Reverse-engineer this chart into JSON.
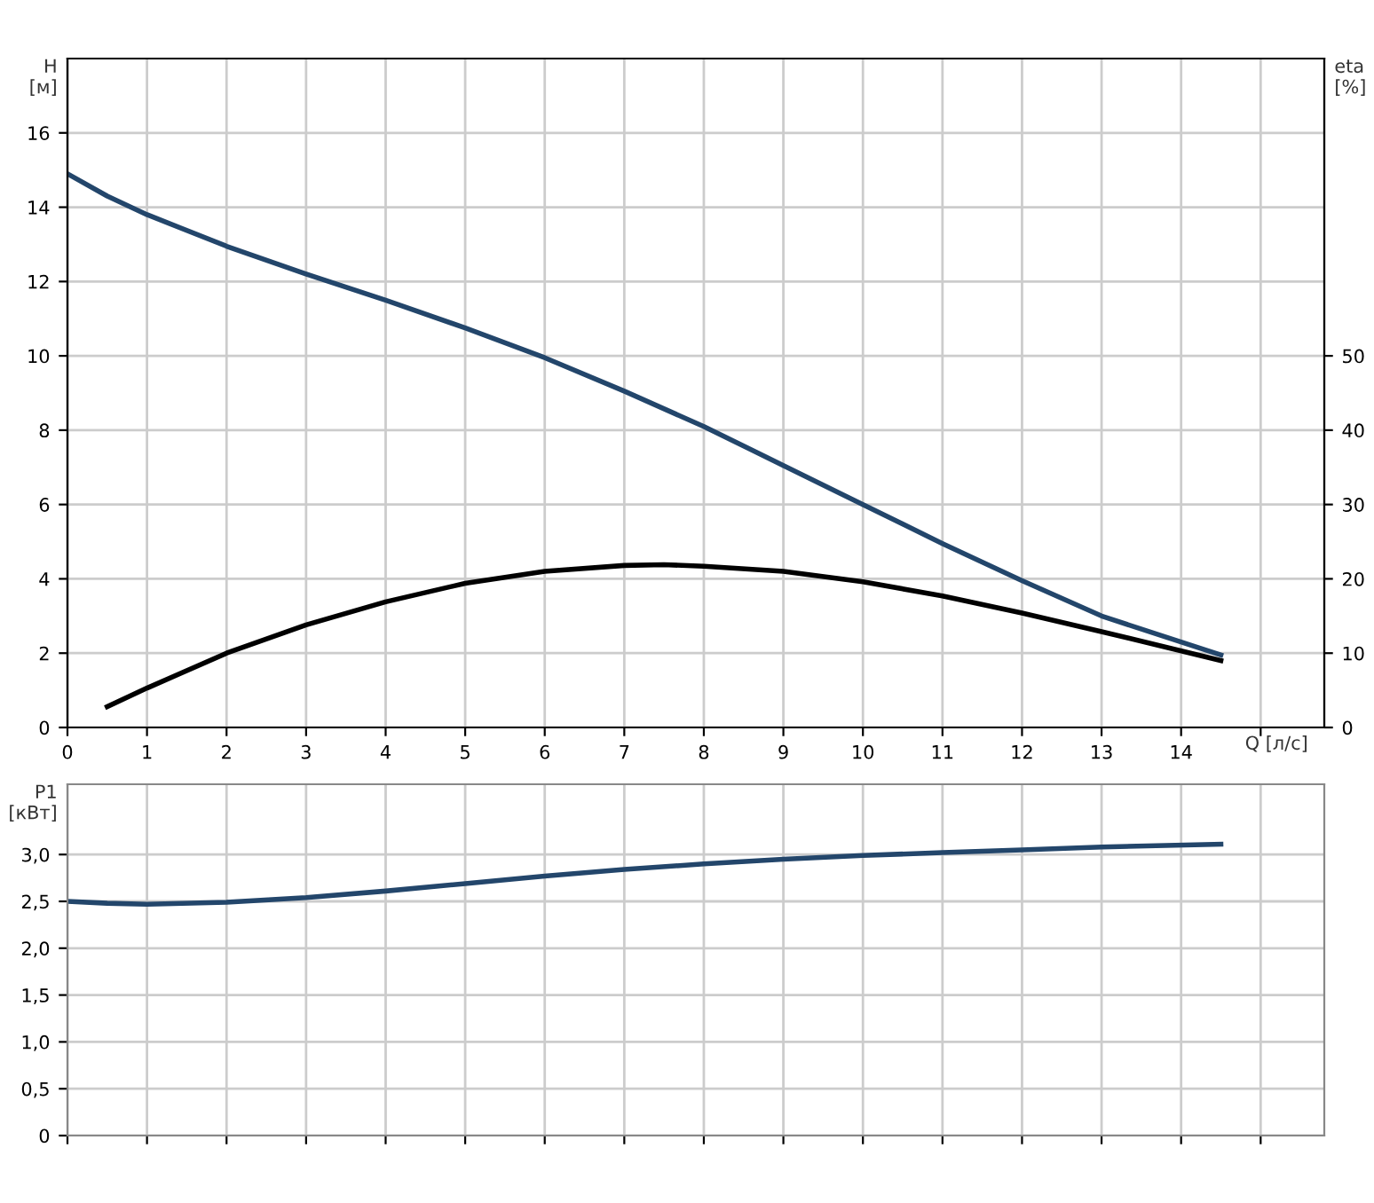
{
  "chart_data": [
    {
      "type": "line",
      "xlabel": "Q [л/с]",
      "ylabel": "H\n[м]",
      "y2label": "eta\n[%]",
      "xlim": [
        0,
        15.8
      ],
      "xticks": [
        0,
        1,
        2,
        3,
        4,
        5,
        6,
        7,
        8,
        9,
        10,
        11,
        12,
        13,
        14,
        {
          "value": 15,
          "label": null
        }
      ],
      "ylim": [
        0,
        18
      ],
      "yticks": [
        0,
        2,
        4,
        6,
        8,
        10,
        12,
        14,
        16
      ],
      "y2lim": [
        0,
        90
      ],
      "y2ticks": [
        0,
        10,
        20,
        30,
        40,
        50
      ],
      "grid": true,
      "marker": "none",
      "line_style": "solid",
      "series": [
        {
          "color": "#23466b",
          "x": [
            0,
            0.5,
            1,
            2,
            3,
            4,
            5,
            6,
            7,
            8,
            9,
            10,
            11,
            12,
            13,
            14.5
          ],
          "values": [
            14.9,
            14.3,
            13.8,
            12.95,
            12.2,
            11.5,
            10.75,
            9.95,
            9.05,
            8.1,
            7.05,
            6.0,
            4.95,
            3.95,
            3.0,
            1.95
          ]
        },
        {
          "color": "#000000",
          "axis": "y2",
          "x": [
            0.5,
            1,
            2,
            3,
            4,
            5,
            6,
            7,
            7.5,
            8,
            9,
            10,
            11,
            12,
            13,
            14.5
          ],
          "values": [
            2.8,
            5.3,
            10,
            13.8,
            16.9,
            19.4,
            21,
            21.8,
            21.9,
            21.7,
            21,
            19.6,
            17.7,
            15.4,
            12.9,
            9.0
          ]
        }
      ]
    },
    {
      "type": "line",
      "ylabel": "P1\n[кВт]",
      "tick_labels": "y",
      "xlim": [
        0,
        15.8
      ],
      "xticks": [
        0,
        1,
        2,
        3,
        4,
        5,
        6,
        7,
        8,
        9,
        10,
        11,
        12,
        13,
        14,
        15
      ],
      "ylim": [
        0,
        3.75
      ],
      "yticks": [
        {
          "value": 0,
          "label": "0"
        },
        {
          "value": 0.5,
          "label": "0,5"
        },
        {
          "value": 1.0,
          "label": "1,0"
        },
        {
          "value": 1.5,
          "label": "1,5"
        },
        {
          "value": 2.0,
          "label": "2,0"
        },
        {
          "value": 2.5,
          "label": "2,5"
        },
        {
          "value": 3.0,
          "label": "3,0"
        }
      ],
      "grid": true,
      "marker": "none",
      "line_style": "solid",
      "series": [
        {
          "color": "#23466b",
          "x": [
            0,
            0.5,
            1,
            2,
            3,
            4,
            5,
            6,
            7,
            8,
            9,
            10,
            11,
            12,
            13,
            14.5
          ],
          "values": [
            2.5,
            2.48,
            2.47,
            2.49,
            2.54,
            2.61,
            2.69,
            2.77,
            2.84,
            2.9,
            2.95,
            2.99,
            3.02,
            3.05,
            3.08,
            3.11
          ]
        }
      ]
    }
  ]
}
